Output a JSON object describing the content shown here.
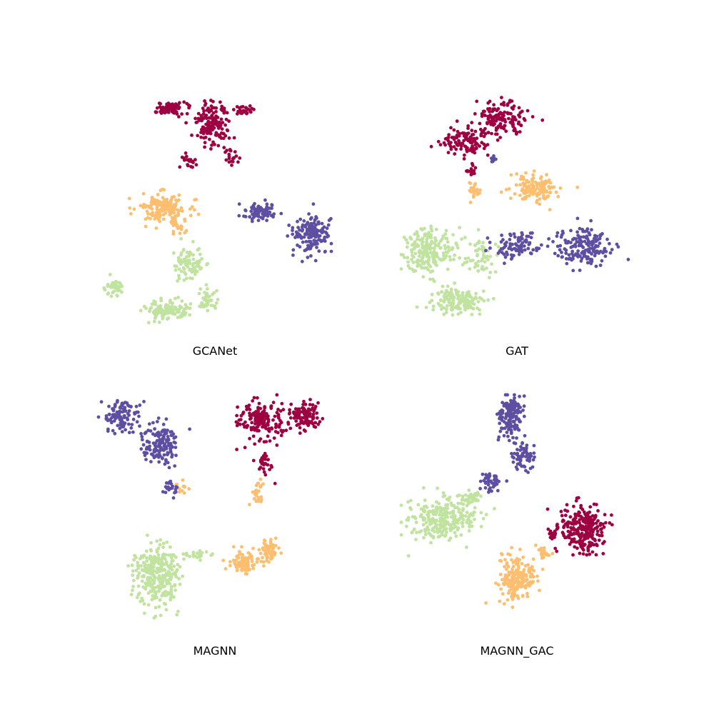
{
  "colors": {
    "class_1": "#9e0142",
    "class_2": "#fdbf6f",
    "class_3": "#c1e3a0",
    "class_4": "#5e4fa2"
  },
  "chart_data": [
    {
      "type": "scatter",
      "title": "GCANet",
      "grid": false,
      "axes_visible": false,
      "series": [
        {
          "color_key": "class_1",
          "clusters": [
            {
              "cx": 0.31,
              "cy": 0.06,
              "rx": 0.07,
              "ry": 0.025,
              "n": 80
            },
            {
              "cx": 0.49,
              "cy": 0.13,
              "rx": 0.07,
              "ry": 0.1,
              "n": 150
            },
            {
              "cx": 0.62,
              "cy": 0.07,
              "rx": 0.04,
              "ry": 0.02,
              "n": 30
            },
            {
              "cx": 0.39,
              "cy": 0.29,
              "rx": 0.03,
              "ry": 0.03,
              "n": 20
            },
            {
              "cx": 0.57,
              "cy": 0.27,
              "rx": 0.03,
              "ry": 0.04,
              "n": 20
            }
          ]
        },
        {
          "color_key": "class_2",
          "clusters": [
            {
              "cx": 0.27,
              "cy": 0.49,
              "rx": 0.11,
              "ry": 0.06,
              "n": 170
            },
            {
              "cx": 0.34,
              "cy": 0.57,
              "rx": 0.04,
              "ry": 0.03,
              "n": 25
            }
          ]
        },
        {
          "color_key": "class_3",
          "clusters": [
            {
              "cx": 0.39,
              "cy": 0.73,
              "rx": 0.06,
              "ry": 0.07,
              "n": 80
            },
            {
              "cx": 0.07,
              "cy": 0.83,
              "rx": 0.04,
              "ry": 0.04,
              "n": 40
            },
            {
              "cx": 0.29,
              "cy": 0.93,
              "rx": 0.1,
              "ry": 0.04,
              "n": 120
            },
            {
              "cx": 0.47,
              "cy": 0.89,
              "rx": 0.04,
              "ry": 0.04,
              "n": 40
            }
          ]
        },
        {
          "color_key": "class_4",
          "clusters": [
            {
              "cx": 0.7,
              "cy": 0.51,
              "rx": 0.08,
              "ry": 0.04,
              "n": 80
            },
            {
              "cx": 0.92,
              "cy": 0.61,
              "rx": 0.08,
              "ry": 0.08,
              "n": 160
            }
          ]
        }
      ]
    },
    {
      "type": "scatter",
      "title": "GAT",
      "grid": false,
      "axes_visible": false,
      "series": [
        {
          "color_key": "class_1",
          "clusters": [
            {
              "cx": 0.28,
              "cy": 0.2,
              "rx": 0.1,
              "ry": 0.06,
              "n": 120
            },
            {
              "cx": 0.43,
              "cy": 0.1,
              "rx": 0.1,
              "ry": 0.07,
              "n": 140
            },
            {
              "cx": 0.3,
              "cy": 0.33,
              "rx": 0.03,
              "ry": 0.03,
              "n": 15
            }
          ]
        },
        {
          "color_key": "class_2",
          "clusters": [
            {
              "cx": 0.58,
              "cy": 0.4,
              "rx": 0.1,
              "ry": 0.06,
              "n": 140
            },
            {
              "cx": 0.31,
              "cy": 0.42,
              "rx": 0.03,
              "ry": 0.04,
              "n": 20
            }
          ]
        },
        {
          "color_key": "class_3",
          "clusters": [
            {
              "cx": 0.12,
              "cy": 0.68,
              "rx": 0.11,
              "ry": 0.1,
              "n": 200
            },
            {
              "cx": 0.25,
              "cy": 0.89,
              "rx": 0.12,
              "ry": 0.05,
              "n": 150
            },
            {
              "cx": 0.33,
              "cy": 0.7,
              "rx": 0.08,
              "ry": 0.08,
              "n": 60
            }
          ]
        },
        {
          "color_key": "class_4",
          "clusters": [
            {
              "cx": 0.5,
              "cy": 0.66,
              "rx": 0.1,
              "ry": 0.06,
              "n": 90
            },
            {
              "cx": 0.78,
              "cy": 0.66,
              "rx": 0.12,
              "ry": 0.09,
              "n": 170
            },
            {
              "cx": 0.41,
              "cy": 0.28,
              "rx": 0.03,
              "ry": 0.02,
              "n": 10
            }
          ]
        }
      ]
    },
    {
      "type": "scatter",
      "title": "MAGNN",
      "grid": false,
      "axes_visible": false,
      "series": [
        {
          "color_key": "class_1",
          "clusters": [
            {
              "cx": 0.7,
              "cy": 0.11,
              "rx": 0.09,
              "ry": 0.08,
              "n": 170
            },
            {
              "cx": 0.88,
              "cy": 0.09,
              "rx": 0.07,
              "ry": 0.06,
              "n": 110
            },
            {
              "cx": 0.72,
              "cy": 0.3,
              "rx": 0.04,
              "ry": 0.04,
              "n": 30
            }
          ]
        },
        {
          "color_key": "class_2",
          "clusters": [
            {
              "cx": 0.62,
              "cy": 0.73,
              "rx": 0.06,
              "ry": 0.05,
              "n": 90
            },
            {
              "cx": 0.73,
              "cy": 0.68,
              "rx": 0.04,
              "ry": 0.05,
              "n": 60
            },
            {
              "cx": 0.68,
              "cy": 0.42,
              "rx": 0.03,
              "ry": 0.05,
              "n": 25
            },
            {
              "cx": 0.36,
              "cy": 0.4,
              "rx": 0.03,
              "ry": 0.03,
              "n": 12
            }
          ]
        },
        {
          "color_key": "class_3",
          "clusters": [
            {
              "cx": 0.25,
              "cy": 0.79,
              "rx": 0.09,
              "ry": 0.14,
              "n": 280
            },
            {
              "cx": 0.42,
              "cy": 0.7,
              "rx": 0.07,
              "ry": 0.02,
              "n": 25
            }
          ]
        },
        {
          "color_key": "class_4",
          "clusters": [
            {
              "cx": 0.1,
              "cy": 0.09,
              "rx": 0.08,
              "ry": 0.07,
              "n": 110
            },
            {
              "cx": 0.27,
              "cy": 0.21,
              "rx": 0.08,
              "ry": 0.09,
              "n": 140
            },
            {
              "cx": 0.31,
              "cy": 0.4,
              "rx": 0.04,
              "ry": 0.04,
              "n": 20
            }
          ]
        }
      ]
    },
    {
      "type": "scatter",
      "title": "MAGNN_GAC",
      "grid": false,
      "axes_visible": false,
      "series": [
        {
          "color_key": "class_1",
          "clusters": [
            {
              "cx": 0.78,
              "cy": 0.58,
              "rx": 0.09,
              "ry": 0.11,
              "n": 260
            },
            {
              "cx": 0.65,
              "cy": 0.61,
              "rx": 0.03,
              "ry": 0.03,
              "n": 15
            }
          ]
        },
        {
          "color_key": "class_2",
          "clusters": [
            {
              "cx": 0.5,
              "cy": 0.8,
              "rx": 0.08,
              "ry": 0.1,
              "n": 190
            },
            {
              "cx": 0.61,
              "cy": 0.69,
              "rx": 0.04,
              "ry": 0.03,
              "n": 20
            }
          ]
        },
        {
          "color_key": "class_3",
          "clusters": [
            {
              "cx": 0.17,
              "cy": 0.54,
              "rx": 0.14,
              "ry": 0.09,
              "n": 260
            },
            {
              "cx": 0.3,
              "cy": 0.45,
              "rx": 0.05,
              "ry": 0.03,
              "n": 40
            }
          ]
        },
        {
          "color_key": "class_4",
          "clusters": [
            {
              "cx": 0.47,
              "cy": 0.09,
              "rx": 0.05,
              "ry": 0.1,
              "n": 150
            },
            {
              "cx": 0.53,
              "cy": 0.27,
              "rx": 0.05,
              "ry": 0.06,
              "n": 70
            },
            {
              "cx": 0.39,
              "cy": 0.38,
              "rx": 0.05,
              "ry": 0.04,
              "n": 40
            }
          ]
        }
      ]
    }
  ]
}
